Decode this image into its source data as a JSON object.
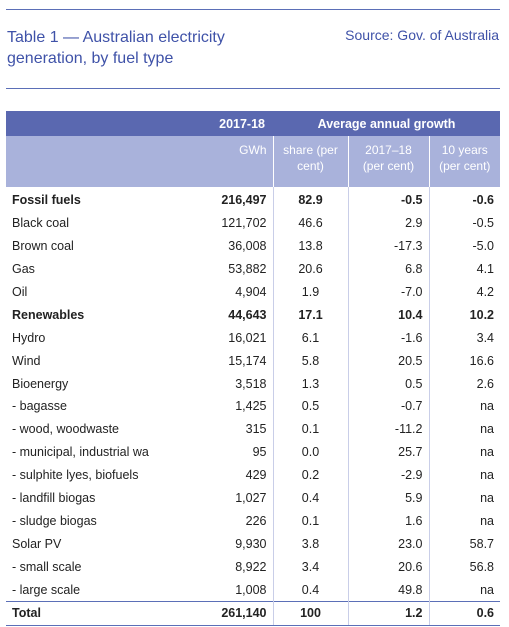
{
  "title": "Table 1 — Australian electricity generation, by fuel type",
  "source": "Source: Gov. of Australia",
  "header": {
    "row1": [
      "",
      "2017-18",
      "Average annual growth"
    ],
    "row2": [
      "",
      "GWh",
      "share (per cent)",
      "2017–18 (per cent)",
      "10 years (per cent)"
    ]
  },
  "rows": [
    {
      "label": "Fossil fuels",
      "gwh": "216,497",
      "share": "82.9",
      "g1718": "-0.5",
      "g10": "-0.6",
      "bold": true
    },
    {
      "label": "Black coal",
      "gwh": "121,702",
      "share": "46.6",
      "g1718": "2.9",
      "g10": "-0.5"
    },
    {
      "label": "Brown coal",
      "gwh": "36,008",
      "share": "13.8",
      "g1718": "-17.3",
      "g10": "-5.0"
    },
    {
      "label": "Gas",
      "gwh": "53,882",
      "share": "20.6",
      "g1718": "6.8",
      "g10": "4.1"
    },
    {
      "label": "Oil",
      "gwh": "4,904",
      "share": "1.9",
      "g1718": "-7.0",
      "g10": "4.2"
    },
    {
      "label": "Renewables",
      "gwh": "44,643",
      "share": "17.1",
      "g1718": "10.4",
      "g10": "10.2",
      "bold": true
    },
    {
      "label": "Hydro",
      "gwh": "16,021",
      "share": "6.1",
      "g1718": "-1.6",
      "g10": "3.4"
    },
    {
      "label": "Wind",
      "gwh": "15,174",
      "share": "5.8",
      "g1718": "20.5",
      "g10": "16.6"
    },
    {
      "label": "Bioenergy",
      "gwh": "3,518",
      "share": "1.3",
      "g1718": "0.5",
      "g10": "2.6"
    },
    {
      "label": " - bagasse",
      "gwh": "1,425",
      "share": "0.5",
      "g1718": "-0.7",
      "g10": "na"
    },
    {
      "label": " - wood, woodwaste",
      "gwh": "315",
      "share": "0.1",
      "g1718": "-11.2",
      "g10": "na"
    },
    {
      "label": " - municipal, industrial wa",
      "gwh": "95",
      "share": "0.0",
      "g1718": "25.7",
      "g10": "na"
    },
    {
      "label": " - sulphite lyes, biofuels",
      "gwh": "429",
      "share": "0.2",
      "g1718": "-2.9",
      "g10": "na"
    },
    {
      "label": " - landfill biogas",
      "gwh": "1,027",
      "share": "0.4",
      "g1718": "5.9",
      "g10": "na"
    },
    {
      "label": " - sludge biogas",
      "gwh": "226",
      "share": "0.1",
      "g1718": "1.6",
      "g10": "na"
    },
    {
      "label": "Solar PV",
      "gwh": "9,930",
      "share": "3.8",
      "g1718": "23.0",
      "g10": "58.7"
    },
    {
      "label": " - small scale",
      "gwh": "8,922",
      "share": "3.4",
      "g1718": "20.6",
      "g10": "56.8"
    },
    {
      "label": " - large scale",
      "gwh": "1,008",
      "share": "0.4",
      "g1718": "49.8",
      "g10": "na"
    },
    {
      "label": "Total",
      "gwh": "261,140",
      "share": "100",
      "g1718": "1.2",
      "g10": "0.6",
      "bold": true,
      "total": true
    }
  ],
  "colors": {
    "accent": "#3f52a8",
    "header_dark": "#5a68b0",
    "header_light": "#a9b2db"
  }
}
